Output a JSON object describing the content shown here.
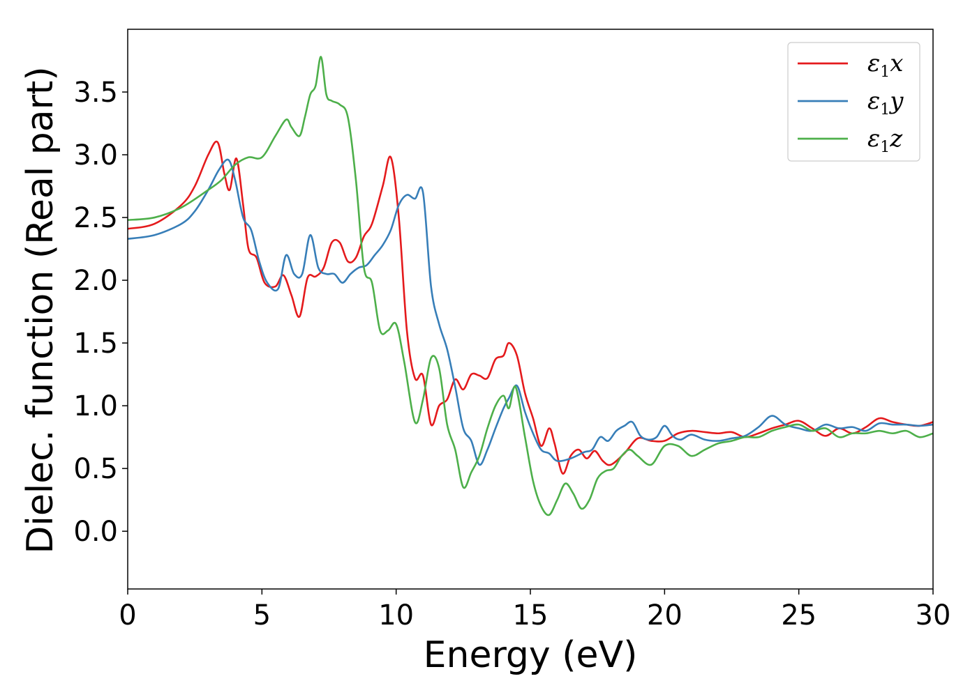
{
  "chart_data": {
    "type": "line",
    "xlabel": "Energy (eV)",
    "ylabel": "Dielec. function (Real part)",
    "xlim": [
      0,
      30
    ],
    "ylim": [
      -0.46,
      4.0
    ],
    "xticks": [
      "0",
      "5",
      "10",
      "15",
      "20",
      "25",
      "30"
    ],
    "yticks": [
      "0.0",
      "0.5",
      "1.0",
      "1.5",
      "2.0",
      "2.5",
      "3.0",
      "3.5"
    ],
    "grid": false,
    "legend_position": "top-right",
    "series": [
      {
        "name": "ε1x",
        "legend_base": "ε",
        "legend_sub": "1",
        "legend_var": "x",
        "color": "#e41a1c",
        "x": [
          0,
          1,
          2,
          2.5,
          3,
          3.35,
          3.6,
          3.8,
          4.05,
          4.3,
          4.5,
          4.8,
          5.1,
          5.5,
          5.8,
          6.1,
          6.4,
          6.7,
          7.0,
          7.3,
          7.6,
          7.9,
          8.2,
          8.5,
          8.8,
          9.1,
          9.5,
          9.8,
          10.1,
          10.4,
          10.7,
          11.0,
          11.3,
          11.6,
          11.9,
          12.2,
          12.5,
          12.8,
          13.1,
          13.4,
          13.7,
          14.0,
          14.2,
          14.5,
          14.8,
          15.1,
          15.4,
          15.7,
          15.9,
          16.2,
          16.5,
          16.8,
          17.1,
          17.4,
          17.7,
          18.0,
          18.5,
          19.0,
          19.5,
          20.0,
          20.5,
          21.0,
          21.5,
          22.0,
          22.5,
          23.0,
          23.5,
          24.0,
          24.5,
          25.0,
          25.5,
          26.0,
          26.5,
          27.0,
          27.5,
          28.0,
          28.5,
          29.0,
          29.5,
          30.0
        ],
        "y": [
          2.41,
          2.45,
          2.6,
          2.75,
          3.0,
          3.1,
          2.85,
          2.72,
          2.97,
          2.6,
          2.25,
          2.18,
          1.98,
          1.95,
          2.04,
          1.88,
          1.71,
          2.02,
          2.03,
          2.1,
          2.3,
          2.3,
          2.15,
          2.18,
          2.35,
          2.45,
          2.75,
          2.98,
          2.5,
          1.6,
          1.22,
          1.24,
          0.85,
          1.0,
          1.05,
          1.21,
          1.13,
          1.25,
          1.24,
          1.22,
          1.37,
          1.4,
          1.5,
          1.4,
          1.1,
          0.9,
          0.68,
          0.82,
          0.7,
          0.46,
          0.6,
          0.65,
          0.58,
          0.64,
          0.56,
          0.53,
          0.62,
          0.74,
          0.72,
          0.72,
          0.78,
          0.8,
          0.79,
          0.78,
          0.79,
          0.75,
          0.78,
          0.82,
          0.85,
          0.88,
          0.82,
          0.76,
          0.82,
          0.78,
          0.83,
          0.9,
          0.87,
          0.85,
          0.84,
          0.87
        ]
      },
      {
        "name": "ε1y",
        "legend_base": "ε",
        "legend_sub": "1",
        "legend_var": "y",
        "color": "#377eb8",
        "x": [
          0,
          1,
          2,
          2.5,
          3,
          3.4,
          3.75,
          4.0,
          4.3,
          4.6,
          4.9,
          5.2,
          5.6,
          5.9,
          6.2,
          6.5,
          6.8,
          7.1,
          7.4,
          7.7,
          8.0,
          8.3,
          8.6,
          8.9,
          9.2,
          9.5,
          9.8,
          10.1,
          10.4,
          10.7,
          11.0,
          11.3,
          11.6,
          11.9,
          12.2,
          12.5,
          12.8,
          13.1,
          13.4,
          13.7,
          14.0,
          14.2,
          14.5,
          14.8,
          15.1,
          15.4,
          15.7,
          16.0,
          16.5,
          17.0,
          17.3,
          17.6,
          17.9,
          18.2,
          18.5,
          18.8,
          19.1,
          19.4,
          19.7,
          20.0,
          20.3,
          20.6,
          21.0,
          21.5,
          22.0,
          22.5,
          23.0,
          23.5,
          24.0,
          24.5,
          25.0,
          25.5,
          26.0,
          26.5,
          27.0,
          27.5,
          28.0,
          28.5,
          29.0,
          29.5,
          30.0
        ],
        "y": [
          2.33,
          2.36,
          2.45,
          2.55,
          2.72,
          2.88,
          2.96,
          2.8,
          2.5,
          2.4,
          2.15,
          1.98,
          1.93,
          2.2,
          2.05,
          2.05,
          2.36,
          2.1,
          2.05,
          2.05,
          1.98,
          2.05,
          2.1,
          2.12,
          2.2,
          2.28,
          2.4,
          2.6,
          2.68,
          2.65,
          2.7,
          1.95,
          1.65,
          1.45,
          1.15,
          0.82,
          0.72,
          0.53,
          0.65,
          0.82,
          0.98,
          1.06,
          1.16,
          0.95,
          0.78,
          0.65,
          0.62,
          0.56,
          0.58,
          0.63,
          0.65,
          0.75,
          0.72,
          0.8,
          0.84,
          0.87,
          0.76,
          0.73,
          0.75,
          0.84,
          0.76,
          0.73,
          0.77,
          0.73,
          0.72,
          0.74,
          0.76,
          0.83,
          0.92,
          0.85,
          0.82,
          0.8,
          0.85,
          0.82,
          0.83,
          0.8,
          0.86,
          0.85,
          0.85,
          0.84,
          0.85
        ]
      },
      {
        "name": "ε1z",
        "legend_base": "ε",
        "legend_sub": "1",
        "legend_var": "z",
        "color": "#4daf4a",
        "x": [
          0,
          1,
          2,
          3,
          3.5,
          4.0,
          4.5,
          5.0,
          5.5,
          5.9,
          6.1,
          6.4,
          6.6,
          6.8,
          7.0,
          7.2,
          7.4,
          7.6,
          7.9,
          8.2,
          8.5,
          8.8,
          9.1,
          9.4,
          9.7,
          10.0,
          10.3,
          10.7,
          11.0,
          11.3,
          11.6,
          11.9,
          12.2,
          12.5,
          12.8,
          13.1,
          13.4,
          13.7,
          14.0,
          14.2,
          14.45,
          14.8,
          15.1,
          15.4,
          15.7,
          16.0,
          16.3,
          16.6,
          16.9,
          17.2,
          17.5,
          17.8,
          18.1,
          18.4,
          18.7,
          19.0,
          19.5,
          20.0,
          20.5,
          21.0,
          21.5,
          22.0,
          22.5,
          23.0,
          23.5,
          24.0,
          24.5,
          25.0,
          25.5,
          26.0,
          26.5,
          27.0,
          27.5,
          28.0,
          28.5,
          29.0,
          29.5,
          30.0
        ],
        "y": [
          2.48,
          2.5,
          2.58,
          2.72,
          2.8,
          2.92,
          2.98,
          2.98,
          3.15,
          3.28,
          3.22,
          3.15,
          3.3,
          3.48,
          3.55,
          3.78,
          3.48,
          3.43,
          3.4,
          3.3,
          2.8,
          2.1,
          1.98,
          1.6,
          1.6,
          1.65,
          1.35,
          0.87,
          1.05,
          1.38,
          1.3,
          0.85,
          0.65,
          0.35,
          0.47,
          0.6,
          0.82,
          1.0,
          1.08,
          0.98,
          1.15,
          0.75,
          0.4,
          0.2,
          0.13,
          0.25,
          0.38,
          0.3,
          0.18,
          0.25,
          0.42,
          0.48,
          0.5,
          0.6,
          0.65,
          0.6,
          0.53,
          0.68,
          0.68,
          0.6,
          0.65,
          0.7,
          0.72,
          0.75,
          0.75,
          0.8,
          0.83,
          0.85,
          0.8,
          0.82,
          0.75,
          0.78,
          0.78,
          0.8,
          0.78,
          0.8,
          0.75,
          0.78
        ]
      }
    ]
  }
}
